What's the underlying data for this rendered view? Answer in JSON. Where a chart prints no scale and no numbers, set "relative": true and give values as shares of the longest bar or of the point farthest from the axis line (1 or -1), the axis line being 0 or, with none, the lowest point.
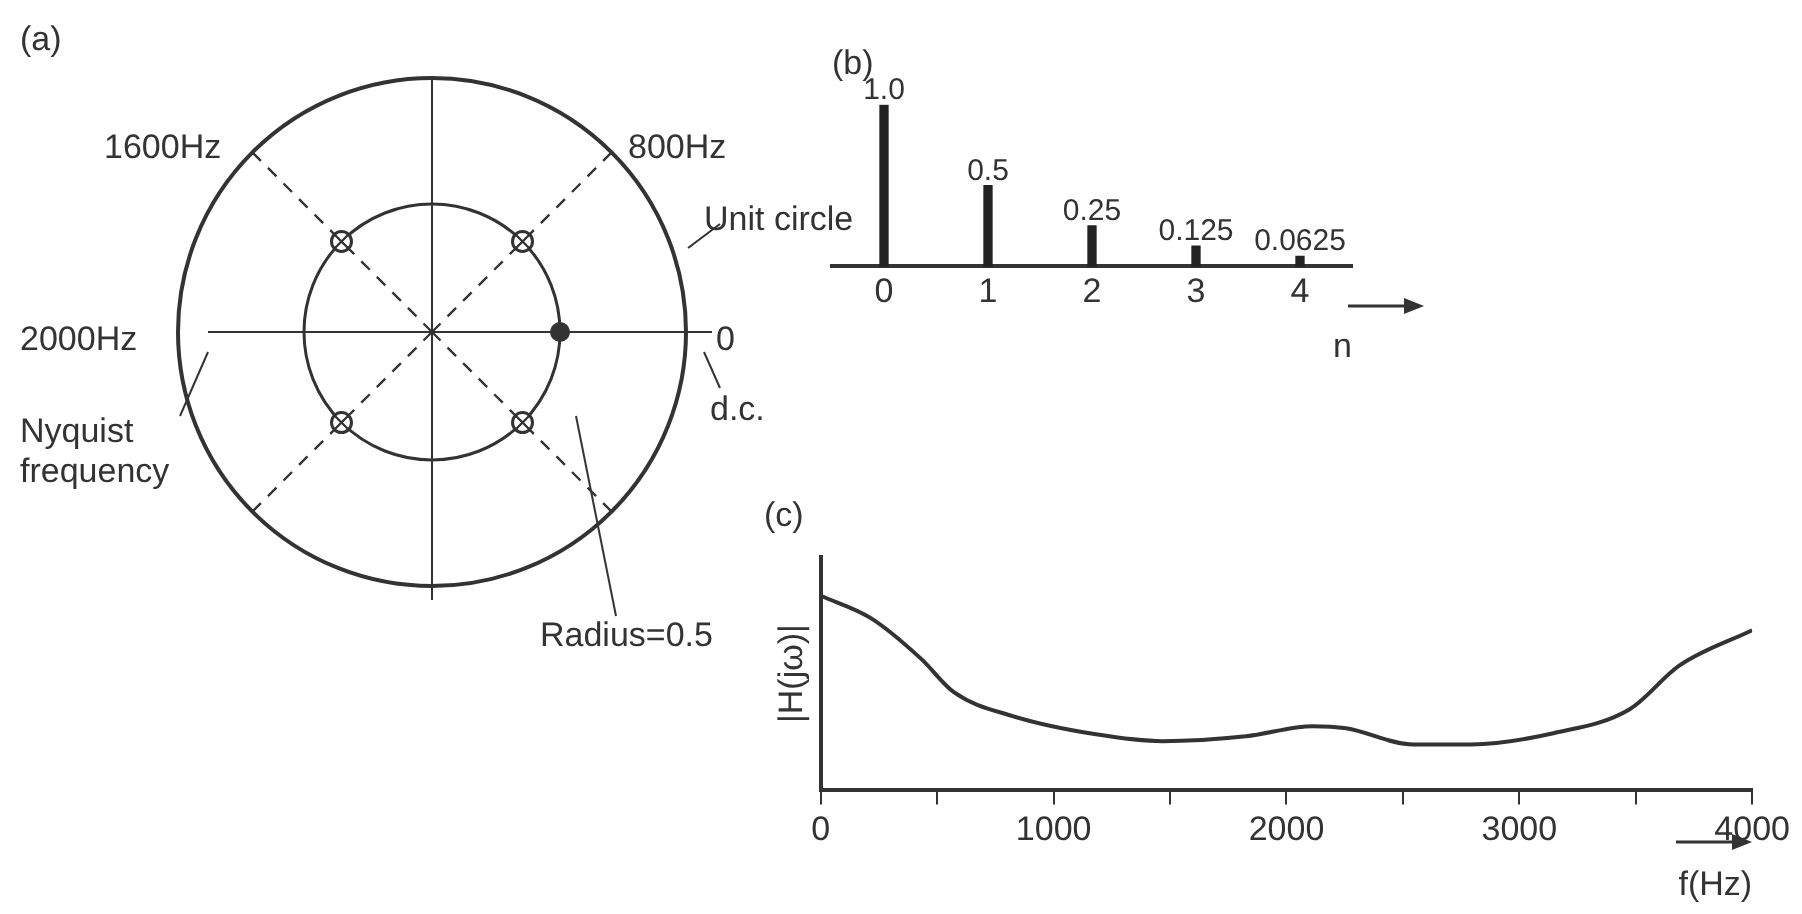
{
  "chart_data": [
    {
      "type": "other",
      "title": "(a)",
      "annotations": [
        "1600Hz",
        "800Hz",
        "2000Hz",
        "0",
        "Unit circle",
        "d.c.",
        "Nyquist frequency",
        "Radius=0.5"
      ]
    },
    {
      "type": "bar",
      "title": "(b)",
      "xlabel": "n",
      "categories": [
        "0",
        "1",
        "2",
        "3",
        "4"
      ],
      "values": [
        1.0,
        0.5,
        0.25,
        0.125,
        0.0625
      ],
      "value_labels": [
        "1.0",
        "0.5",
        "0.25",
        "0.125",
        "0.0625"
      ],
      "color": "#222222",
      "tick_labels": "x",
      "grid": false,
      "legend": false
    },
    {
      "type": "line",
      "title": "(c)",
      "xlabel": "f(Hz)",
      "ylabel": "|H(jω)|",
      "relative": true,
      "color": "#333333",
      "x": [
        0,
        215,
        430,
        573,
        824,
        1182,
        1468,
        1826,
        2113,
        2256,
        2543,
        2793,
        3151,
        3474,
        3688,
        4000
      ],
      "values": [
        1,
        0.885,
        0.677,
        0.503,
        0.382,
        0.288,
        0.253,
        0.278,
        0.33,
        0.319,
        0.236,
        0.236,
        0.295,
        0.417,
        0.642,
        0.823
      ],
      "xlim": [
        0,
        4000
      ],
      "xticks": [
        0,
        {
          "value": 500,
          "label": null
        },
        1000,
        {
          "value": 1500,
          "label": null
        },
        2000,
        {
          "value": 2500,
          "label": null
        },
        3000,
        {
          "value": 3500,
          "label": null
        },
        4000
      ],
      "tick_labels": "x",
      "grid": false,
      "legend": false,
      "marker": "none",
      "line_style": "solid"
    }
  ]
}
